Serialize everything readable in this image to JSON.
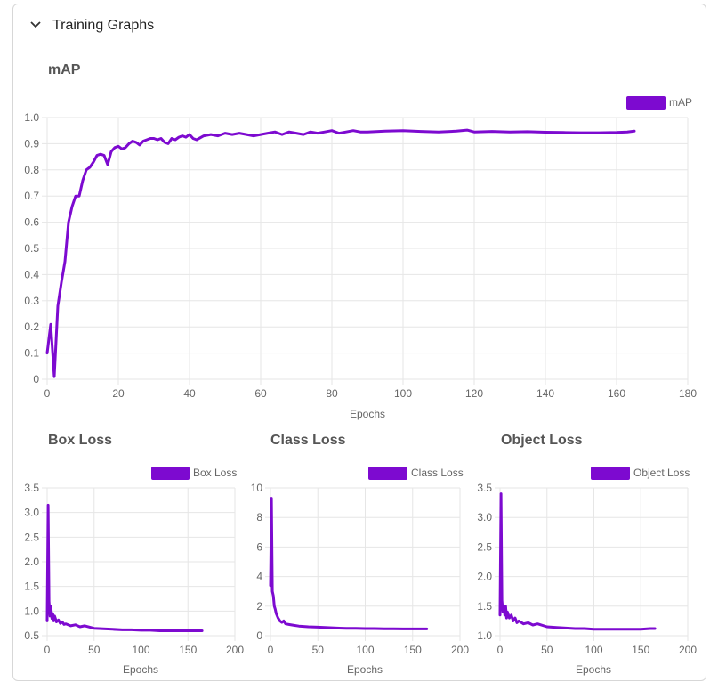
{
  "section": {
    "title": "Training Graphs",
    "expanded": true,
    "toggle_icon": "chevron-down-icon"
  },
  "accent_color": "#7d0ad0",
  "chart_data": [
    {
      "id": "map",
      "type": "line",
      "title": "mAP",
      "xlabel": "Epochs",
      "ylabel": "",
      "legend": "top-right",
      "grid": true,
      "xlim": [
        0,
        180
      ],
      "ylim": [
        0,
        1.0
      ],
      "xticks": [
        0,
        20,
        40,
        60,
        80,
        100,
        120,
        140,
        160,
        180
      ],
      "yticks": [
        "0",
        "0.1",
        "0.2",
        "0.3",
        "0.4",
        "0.5",
        "0.6",
        "0.7",
        "0.8",
        "0.9",
        "1.0"
      ],
      "series": [
        {
          "name": "mAP",
          "color": "#7d0ad0",
          "x": [
            0,
            1,
            2,
            3,
            4,
            5,
            6,
            7,
            8,
            9,
            10,
            11,
            12,
            13,
            14,
            15,
            16,
            17,
            18,
            19,
            20,
            21,
            22,
            23,
            24,
            25,
            26,
            27,
            28,
            29,
            30,
            31,
            32,
            33,
            34,
            35,
            36,
            37,
            38,
            39,
            40,
            41,
            42,
            44,
            46,
            48,
            50,
            52,
            54,
            56,
            58,
            60,
            62,
            64,
            66,
            68,
            70,
            72,
            74,
            76,
            78,
            80,
            82,
            84,
            86,
            88,
            90,
            95,
            100,
            105,
            110,
            115,
            118,
            120,
            125,
            130,
            135,
            140,
            145,
            150,
            155,
            160,
            163,
            165
          ],
          "values": [
            0.1,
            0.21,
            0.01,
            0.28,
            0.37,
            0.45,
            0.6,
            0.66,
            0.7,
            0.7,
            0.76,
            0.8,
            0.81,
            0.83,
            0.855,
            0.86,
            0.855,
            0.82,
            0.87,
            0.885,
            0.89,
            0.88,
            0.885,
            0.9,
            0.91,
            0.905,
            0.895,
            0.91,
            0.915,
            0.92,
            0.92,
            0.915,
            0.92,
            0.905,
            0.9,
            0.92,
            0.915,
            0.925,
            0.93,
            0.925,
            0.935,
            0.92,
            0.915,
            0.93,
            0.935,
            0.93,
            0.94,
            0.935,
            0.94,
            0.935,
            0.93,
            0.935,
            0.94,
            0.945,
            0.935,
            0.945,
            0.94,
            0.935,
            0.945,
            0.94,
            0.945,
            0.95,
            0.94,
            0.945,
            0.95,
            0.945,
            0.945,
            0.948,
            0.95,
            0.947,
            0.945,
            0.948,
            0.952,
            0.945,
            0.947,
            0.945,
            0.946,
            0.944,
            0.943,
            0.942,
            0.942,
            0.943,
            0.945,
            0.948
          ]
        }
      ]
    },
    {
      "id": "box",
      "type": "line",
      "title": "Box Loss",
      "xlabel": "Epochs",
      "ylabel": "",
      "legend": "top-right",
      "grid": true,
      "xlim": [
        0,
        200
      ],
      "ylim": [
        0.5,
        3.5
      ],
      "xticks": [
        0,
        50,
        100,
        150,
        200
      ],
      "yticks": [
        "0.5",
        "1.0",
        "1.5",
        "2.0",
        "2.5",
        "3.0",
        "3.5"
      ],
      "series": [
        {
          "name": "Box Loss",
          "color": "#7d0ad0",
          "x": [
            0,
            1,
            2,
            3,
            4,
            5,
            6,
            7,
            8,
            10,
            12,
            14,
            16,
            18,
            20,
            25,
            30,
            35,
            40,
            50,
            60,
            70,
            80,
            90,
            100,
            110,
            120,
            130,
            140,
            150,
            160,
            165
          ],
          "values": [
            0.8,
            3.15,
            1.2,
            0.9,
            1.1,
            0.85,
            0.95,
            0.8,
            0.9,
            0.78,
            0.82,
            0.75,
            0.78,
            0.73,
            0.74,
            0.7,
            0.72,
            0.68,
            0.7,
            0.65,
            0.64,
            0.63,
            0.62,
            0.62,
            0.61,
            0.61,
            0.6,
            0.6,
            0.6,
            0.6,
            0.6,
            0.6
          ]
        }
      ]
    },
    {
      "id": "class",
      "type": "line",
      "title": "Class Loss",
      "xlabel": "Epochs",
      "ylabel": "",
      "legend": "top-right",
      "grid": true,
      "xlim": [
        0,
        200
      ],
      "ylim": [
        0,
        10
      ],
      "xticks": [
        0,
        50,
        100,
        150,
        200
      ],
      "yticks": [
        "0",
        "2",
        "4",
        "6",
        "8",
        "10"
      ],
      "series": [
        {
          "name": "Class Loss",
          "color": "#7d0ad0",
          "x": [
            0,
            1,
            2,
            3,
            4,
            5,
            6,
            8,
            10,
            12,
            14,
            16,
            20,
            25,
            30,
            40,
            50,
            60,
            70,
            80,
            90,
            100,
            110,
            120,
            130,
            140,
            150,
            160,
            165
          ],
          "values": [
            3.4,
            9.3,
            3.0,
            2.7,
            2.0,
            1.8,
            1.5,
            1.2,
            1.0,
            0.9,
            1.0,
            0.8,
            0.75,
            0.7,
            0.65,
            0.6,
            0.58,
            0.55,
            0.52,
            0.5,
            0.5,
            0.48,
            0.48,
            0.47,
            0.47,
            0.46,
            0.46,
            0.46,
            0.46
          ]
        }
      ]
    },
    {
      "id": "object",
      "type": "line",
      "title": "Object Loss",
      "xlabel": "Epochs",
      "ylabel": "",
      "legend": "top-right",
      "grid": true,
      "xlim": [
        0,
        200
      ],
      "ylim": [
        1.0,
        3.5
      ],
      "xticks": [
        0,
        50,
        100,
        150,
        200
      ],
      "yticks": [
        "1.0",
        "1.5",
        "2.0",
        "2.5",
        "3.0",
        "3.5"
      ],
      "series": [
        {
          "name": "Object Loss",
          "color": "#7d0ad0",
          "x": [
            0,
            1,
            2,
            3,
            4,
            5,
            6,
            7,
            8,
            10,
            12,
            14,
            16,
            18,
            20,
            25,
            30,
            35,
            40,
            50,
            60,
            70,
            80,
            90,
            100,
            110,
            120,
            130,
            140,
            150,
            160,
            165
          ],
          "values": [
            1.35,
            3.4,
            1.6,
            1.4,
            1.5,
            1.35,
            1.5,
            1.3,
            1.4,
            1.3,
            1.35,
            1.25,
            1.3,
            1.22,
            1.25,
            1.2,
            1.22,
            1.18,
            1.2,
            1.15,
            1.14,
            1.13,
            1.12,
            1.12,
            1.11,
            1.11,
            1.11,
            1.11,
            1.11,
            1.11,
            1.12,
            1.12
          ]
        }
      ]
    }
  ]
}
